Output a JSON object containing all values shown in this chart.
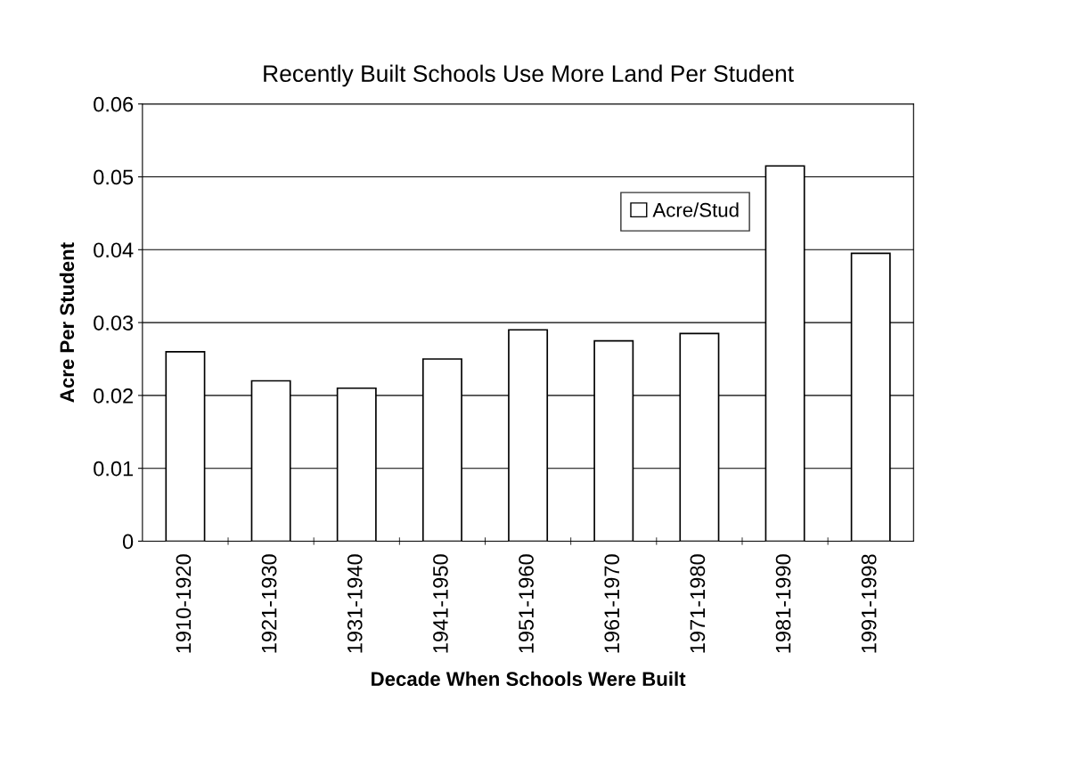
{
  "chart_data": {
    "type": "bar",
    "title": "Recently Built Schools Use More Land Per Student",
    "xlabel": "Decade When Schools Were Built",
    "ylabel": "Acre Per Student",
    "categories": [
      "1910-1920",
      "1921-1930",
      "1931-1940",
      "1941-1950",
      "1951-1960",
      "1961-1970",
      "1971-1980",
      "1981-1990",
      "1991-1998"
    ],
    "series": [
      {
        "name": "Acre/Stud",
        "color": "#ffffff",
        "values": [
          0.026,
          0.022,
          0.021,
          0.025,
          0.029,
          0.0275,
          0.0285,
          0.0515,
          0.0395
        ]
      }
    ],
    "ylim": [
      0,
      0.06
    ],
    "yticks": [
      0,
      0.01,
      0.02,
      0.03,
      0.04,
      0.05,
      0.06
    ],
    "grid": "y",
    "legend": "top right"
  }
}
